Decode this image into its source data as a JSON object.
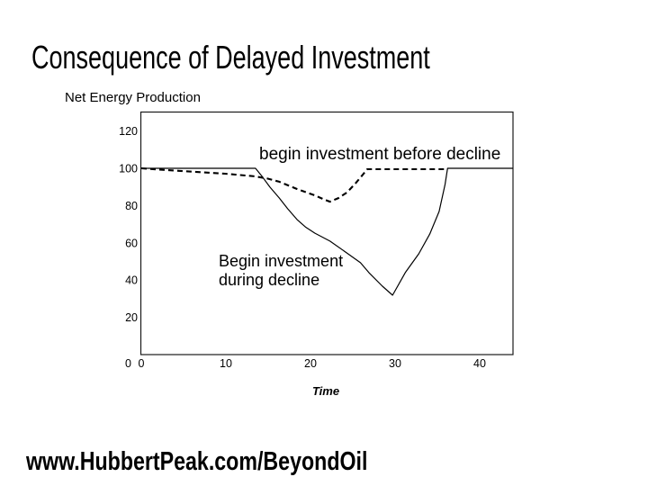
{
  "slide": {
    "title": "Consequence of Delayed Investment",
    "footer_url": "www.HubbertPeak.com/BeyondOil"
  },
  "chart_data": {
    "type": "line",
    "title": "Net Energy Production",
    "xlabel": "Time",
    "ylabel": "",
    "xlim": [
      0,
      44
    ],
    "ylim": [
      0,
      130
    ],
    "xticks": [
      0,
      10,
      20,
      30,
      40
    ],
    "yticks": [
      0,
      20,
      40,
      60,
      80,
      100,
      120
    ],
    "grid": false,
    "legend_position": "none",
    "annotations": {
      "before": {
        "text": "begin investment before decline"
      },
      "during": {
        "lines": [
          "Begin investment",
          "during decline"
        ]
      }
    },
    "series": [
      {
        "name": "begin investment before decline",
        "style": "dashed",
        "x": [
          0,
          2,
          4.6,
          7,
          9.9,
          11.7,
          13.4,
          14.9,
          16.3,
          18.4,
          20.5,
          21.5,
          22.3,
          23.3,
          24.3,
          25.3,
          26.1,
          26.7,
          36.2
        ],
        "y": [
          100,
          99.3,
          98.6,
          97.9,
          97.1,
          96.4,
          95.7,
          94.5,
          92.8,
          88.9,
          85.5,
          83.5,
          82.1,
          84.0,
          87.0,
          91.8,
          96.1,
          99.5,
          99.5
        ]
      },
      {
        "name": "Begin investment during decline",
        "style": "solid",
        "x": [
          0,
          13.5,
          14.3,
          15.2,
          16.3,
          17.3,
          18.4,
          19.4,
          20.5,
          22.3,
          24.0,
          25.9,
          26.9,
          28.5,
          29.7,
          31.2,
          32.8,
          34.1,
          35.2,
          35.9,
          36.2,
          43.9
        ],
        "y": [
          100,
          100,
          95.5,
          89.9,
          84.1,
          78.3,
          72.5,
          68.5,
          65.2,
          60.9,
          55.5,
          49.3,
          44.0,
          36.7,
          31.9,
          44.0,
          54.1,
          64.7,
          76.8,
          91.3,
          100,
          100
        ]
      }
    ]
  }
}
